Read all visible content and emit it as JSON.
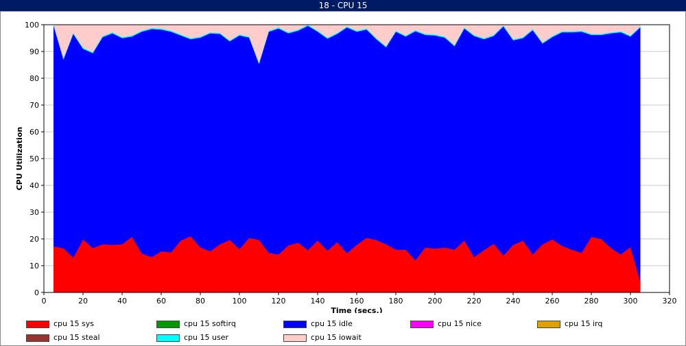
{
  "window": {
    "title": "18 - CPU 15"
  },
  "chart_data": {
    "type": "area",
    "xlabel": "Time (secs.)",
    "ylabel": "CPU Utilization",
    "xlim": [
      0,
      320
    ],
    "ylim": [
      0,
      100
    ],
    "xticks": [
      0,
      20,
      40,
      60,
      80,
      100,
      120,
      140,
      160,
      180,
      200,
      220,
      240,
      260,
      280,
      300,
      320
    ],
    "yticks": [
      0,
      10,
      20,
      30,
      40,
      50,
      60,
      70,
      80,
      90,
      100
    ],
    "grid": true,
    "legend_position": "bottom",
    "legend": [
      {
        "name": "cpu 15 sys",
        "color": "#ff0000"
      },
      {
        "name": "cpu 15 softirq",
        "color": "#009900"
      },
      {
        "name": "cpu 15 idle",
        "color": "#0000ff"
      },
      {
        "name": "cpu 15 nice",
        "color": "#ff00ff"
      },
      {
        "name": "cpu 15 irq",
        "color": "#e0a000"
      },
      {
        "name": "cpu 15 steal",
        "color": "#993333"
      },
      {
        "name": "cpu 15 user",
        "color": "#00ffff"
      },
      {
        "name": "cpu 15 iowait",
        "color": "#ffcccc"
      }
    ],
    "x": [
      5,
      10,
      15,
      20,
      25,
      30,
      35,
      40,
      45,
      50,
      55,
      60,
      65,
      70,
      75,
      80,
      85,
      90,
      95,
      100,
      105,
      110,
      115,
      120,
      125,
      130,
      135,
      140,
      145,
      150,
      155,
      160,
      165,
      170,
      175,
      180,
      185,
      190,
      195,
      200,
      205,
      210,
      215,
      220,
      225,
      230,
      235,
      240,
      245,
      250,
      255,
      260,
      265,
      270,
      275,
      280,
      285,
      290,
      295,
      300,
      305
    ],
    "series": [
      {
        "name": "cpu 15 sys",
        "color": "#ff0000",
        "values": [
          17.2,
          16.5,
          13.0,
          19.8,
          16.6,
          18.0,
          17.8,
          18.0,
          20.8,
          14.6,
          13.2,
          15.4,
          15.0,
          19.4,
          21.0,
          16.8,
          15.4,
          18.0,
          19.6,
          16.2,
          20.4,
          19.6,
          14.8,
          14.2,
          17.6,
          18.6,
          15.8,
          19.4,
          15.6,
          18.8,
          14.6,
          17.8,
          20.4,
          19.6,
          18.0,
          16.0,
          16.0,
          12.0,
          16.8,
          16.4,
          16.8,
          16.0,
          19.4,
          13.2,
          15.8,
          18.2,
          13.8,
          17.8,
          19.4,
          14.2,
          18.0,
          19.8,
          17.4,
          16.0,
          14.8,
          20.8,
          20.0,
          16.6,
          14.2,
          17.0,
          4.2
        ]
      },
      {
        "name": "cpu 15 softirq",
        "color": "#009900",
        "values": [
          0,
          0,
          0,
          0,
          0,
          0,
          0,
          0,
          0,
          0,
          0,
          0,
          0,
          0,
          0,
          0,
          0,
          0,
          0,
          0,
          0,
          0,
          0,
          0,
          0,
          0,
          0,
          0,
          0,
          0,
          0,
          0,
          0,
          0,
          0,
          0,
          0,
          0,
          0,
          0,
          0,
          0,
          0,
          0,
          0,
          0,
          0,
          0,
          0,
          0,
          0,
          0,
          0,
          0,
          0,
          0,
          0,
          0,
          0,
          0,
          0
        ]
      },
      {
        "name": "cpu 15 idle",
        "color": "#0000ff",
        "values": [
          82.4,
          70.6,
          83.6,
          71.2,
          72.8,
          77.4,
          79.0,
          77.0,
          74.8,
          82.8,
          85.2,
          82.8,
          82.4,
          76.6,
          73.6,
          78.4,
          81.4,
          78.6,
          74.2,
          79.8,
          74.8,
          65.8,
          82.6,
          84.4,
          79.2,
          79.2,
          83.8,
          78.0,
          79.2,
          77.8,
          84.4,
          79.6,
          77.8,
          75.0,
          73.6,
          81.4,
          79.6,
          85.6,
          79.4,
          79.6,
          78.4,
          76.0,
          79.2,
          82.6,
          78.8,
          77.6,
          85.6,
          76.4,
          75.6,
          83.8,
          75.0,
          75.6,
          79.8,
          81.2,
          82.6,
          75.4,
          76.2,
          80.2,
          83.0,
          78.6,
          94.8
        ]
      },
      {
        "name": "cpu 15 nice",
        "color": "#ff00ff",
        "values": [
          0,
          0,
          0,
          0,
          0,
          0,
          0,
          0,
          0,
          0,
          0,
          0,
          0,
          0,
          0,
          0,
          0,
          0,
          0,
          0,
          0,
          0,
          0,
          0,
          0,
          0,
          0,
          0,
          0,
          0,
          0,
          0,
          0,
          0,
          0,
          0,
          0,
          0,
          0,
          0,
          0,
          0,
          0,
          0,
          0,
          0,
          0,
          0,
          0,
          0,
          0,
          0,
          0,
          0,
          0,
          0,
          0,
          0,
          0,
          0,
          0
        ]
      },
      {
        "name": "cpu 15 irq",
        "color": "#e0a000",
        "values": [
          0,
          0,
          0,
          0,
          0,
          0,
          0,
          0,
          0,
          0,
          0,
          0,
          0,
          0,
          0,
          0,
          0,
          0,
          0,
          0,
          0,
          0,
          0,
          0,
          0,
          0,
          0,
          0,
          0,
          0,
          0,
          0,
          0,
          0,
          0,
          0,
          0,
          0,
          0,
          0,
          0,
          0,
          0,
          0,
          0,
          0,
          0,
          0,
          0,
          0,
          0,
          0,
          0,
          0,
          0,
          0,
          0,
          0,
          0,
          0,
          0
        ]
      },
      {
        "name": "cpu 15 steal",
        "color": "#993333",
        "values": [
          0,
          0,
          0,
          0,
          0,
          0,
          0,
          0,
          0,
          0,
          0,
          0,
          0,
          0,
          0,
          0,
          0,
          0,
          0,
          0,
          0,
          0,
          0,
          0,
          0,
          0,
          0,
          0,
          0,
          0,
          0,
          0,
          0,
          0,
          0,
          0,
          0,
          0,
          0,
          0,
          0,
          0,
          0,
          0,
          0,
          0,
          0,
          0,
          0,
          0,
          0,
          0,
          0,
          0,
          0,
          0,
          0,
          0,
          0,
          0,
          0
        ]
      },
      {
        "name": "cpu 15 user",
        "color": "#00ffff",
        "values": [
          0.4,
          0.4,
          0.4,
          0.4,
          0.4,
          0.4,
          0.4,
          0.4,
          0.4,
          0.4,
          0.4,
          0.4,
          0.4,
          0.4,
          0.4,
          0.4,
          0.4,
          0.4,
          0.4,
          0.4,
          0.4,
          0.4,
          0.4,
          0.4,
          0.4,
          0.4,
          0.4,
          0.4,
          0.4,
          0.4,
          0.4,
          0.4,
          0.4,
          0.4,
          0.4,
          0.4,
          0.4,
          0.4,
          0.4,
          0.4,
          0.4,
          0.4,
          0.4,
          0.4,
          0.4,
          0.4,
          0.4,
          0.4,
          0.4,
          0.4,
          0.4,
          0.4,
          0.4,
          0.4,
          0.4,
          0.4,
          0.4,
          0.4,
          0.4,
          0.4,
          0.4
        ]
      },
      {
        "name": "cpu 15 iowait",
        "color": "#ffcccc",
        "values": [
          0.0,
          12.5,
          3.0,
          8.6,
          10.2,
          4.2,
          2.8,
          4.6,
          4.0,
          2.2,
          1.2,
          1.4,
          2.2,
          3.6,
          5.0,
          4.4,
          2.8,
          3.0,
          5.8,
          3.6,
          4.4,
          14.2,
          2.2,
          1.0,
          2.8,
          1.8,
          0.0,
          2.2,
          4.8,
          3.0,
          0.6,
          2.2,
          1.4,
          5.0,
          8.0,
          2.2,
          4.0,
          2.0,
          3.4,
          3.6,
          4.4,
          7.6,
          1.0,
          3.8,
          5.0,
          3.8,
          0.2,
          5.4,
          4.6,
          1.6,
          6.6,
          4.2,
          2.4,
          2.4,
          2.2,
          3.4,
          3.4,
          2.8,
          2.4,
          4.0,
          0.6
        ]
      }
    ]
  }
}
